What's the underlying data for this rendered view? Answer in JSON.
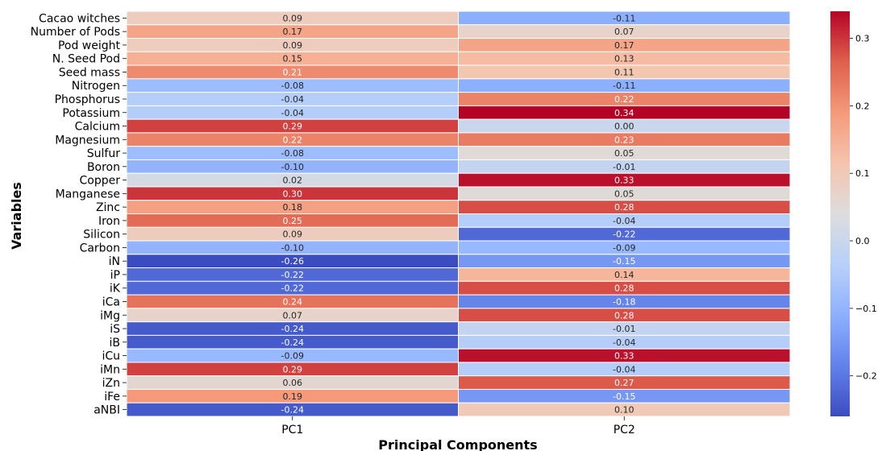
{
  "chart_data": {
    "type": "heatmap",
    "title": "",
    "xlabel": "Principal Components",
    "ylabel": "Variables",
    "columns": [
      "PC1",
      "PC2"
    ],
    "rows": [
      "Cacao witches",
      "Number of Pods",
      "Pod weight",
      "N. Seed Pod",
      "Seed mass",
      "Nitrogen",
      "Phosphorus",
      "Potassium",
      "Calcium",
      "Magnesium",
      "Sulfur",
      "Boron",
      "Copper",
      "Manganese",
      "Zinc",
      "Iron",
      "Silicon",
      "Carbon",
      "iN",
      "iP",
      "iK",
      "iCa",
      "iMg",
      "iS",
      "iB",
      "iCu",
      "iMn",
      "iZn",
      "iFe",
      "aNBI"
    ],
    "values": [
      [
        0.09,
        -0.11
      ],
      [
        0.17,
        0.07
      ],
      [
        0.09,
        0.17
      ],
      [
        0.15,
        0.13
      ],
      [
        0.21,
        0.11
      ],
      [
        -0.08,
        -0.11
      ],
      [
        -0.04,
        0.22
      ],
      [
        -0.04,
        0.34
      ],
      [
        0.29,
        0.0
      ],
      [
        0.22,
        0.23
      ],
      [
        -0.08,
        0.05
      ],
      [
        -0.1,
        -0.01
      ],
      [
        0.02,
        0.33
      ],
      [
        0.3,
        0.05
      ],
      [
        0.18,
        0.28
      ],
      [
        0.25,
        -0.04
      ],
      [
        0.09,
        -0.22
      ],
      [
        -0.1,
        -0.09
      ],
      [
        -0.26,
        -0.15
      ],
      [
        -0.22,
        0.14
      ],
      [
        -0.22,
        0.28
      ],
      [
        0.24,
        -0.18
      ],
      [
        0.07,
        0.28
      ],
      [
        -0.24,
        -0.01
      ],
      [
        -0.24,
        -0.04
      ],
      [
        -0.09,
        0.33
      ],
      [
        0.29,
        -0.04
      ],
      [
        0.06,
        0.27
      ],
      [
        0.19,
        -0.15
      ],
      [
        -0.24,
        0.1
      ]
    ],
    "value_format": "2-decimal",
    "colormap": "coolwarm",
    "vmin": -0.26,
    "vmax": 0.34,
    "colorbar_ticks": [
      "0.3",
      "0.2",
      "0.1",
      "0.0",
      "−0.1",
      "−0.2"
    ],
    "colorbar_tick_values": [
      0.3,
      0.2,
      0.1,
      0.0,
      -0.1,
      -0.2
    ]
  }
}
